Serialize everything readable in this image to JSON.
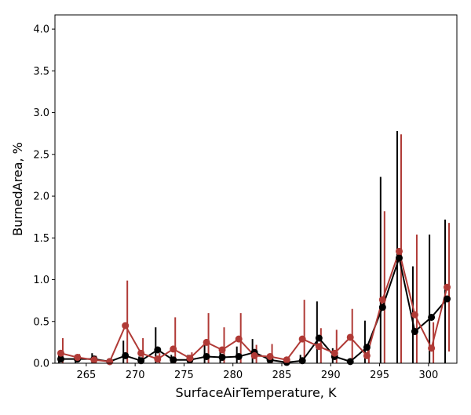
{
  "chart_data": {
    "type": "line",
    "title": "",
    "xlabel": "SurfaceAirTemperature,  K",
    "ylabel": "BurnedArea,  %",
    "xlim": [
      261.8,
      302.9
    ],
    "ylim": [
      0,
      4.17
    ],
    "xticks": [
      265,
      270,
      275,
      280,
      285,
      290,
      295,
      300
    ],
    "yticks": [
      0.0,
      0.5,
      1.0,
      1.5,
      2.0,
      2.5,
      3.0,
      3.5,
      4.0
    ],
    "xtick_labels": [
      "265",
      "270",
      "275",
      "280",
      "285",
      "290",
      "295",
      "300"
    ],
    "ytick_labels": [
      "0.0",
      "0.5",
      "1.0",
      "1.5",
      "2.0",
      "2.5",
      "3.0",
      "3.5",
      "4.0"
    ],
    "grid": false,
    "legend": "none",
    "series": [
      {
        "color": "#000000",
        "errorbar_offset": -0.2,
        "points": [
          {
            "x": 262.4,
            "y": 0.05,
            "err": 0.07
          },
          {
            "x": 264.1,
            "y": 0.05,
            "err": 0.05
          },
          {
            "x": 265.8,
            "y": 0.05,
            "err": 0.07
          },
          {
            "x": 267.4,
            "y": 0.02,
            "err": 0.02
          },
          {
            "x": 269.0,
            "y": 0.09,
            "err": 0.18
          },
          {
            "x": 270.6,
            "y": 0.03,
            "err": 0.05
          },
          {
            "x": 272.3,
            "y": 0.16,
            "err": 0.27
          },
          {
            "x": 273.9,
            "y": 0.04,
            "err": 0.06
          },
          {
            "x": 275.6,
            "y": 0.04,
            "err": 0.06
          },
          {
            "x": 277.3,
            "y": 0.08,
            "err": 0.17
          },
          {
            "x": 278.9,
            "y": 0.07,
            "err": 0.08
          },
          {
            "x": 280.6,
            "y": 0.08,
            "err": 0.12
          },
          {
            "x": 282.2,
            "y": 0.13,
            "err": 0.16
          },
          {
            "x": 283.8,
            "y": 0.04,
            "err": 0.05
          },
          {
            "x": 285.5,
            "y": 0.01,
            "err": 0.02
          },
          {
            "x": 287.1,
            "y": 0.03,
            "err": 0.07
          },
          {
            "x": 288.8,
            "y": 0.3,
            "err": 0.44
          },
          {
            "x": 290.4,
            "y": 0.08,
            "err": 0.1
          },
          {
            "x": 292.0,
            "y": 0.02,
            "err": 0.03
          },
          {
            "x": 293.7,
            "y": 0.19,
            "err": 0.32
          },
          {
            "x": 295.3,
            "y": 0.67,
            "err": 1.56
          },
          {
            "x": 297.0,
            "y": 1.26,
            "err": 1.52
          },
          {
            "x": 298.6,
            "y": 0.38,
            "err": 0.78
          },
          {
            "x": 300.3,
            "y": 0.55,
            "err": 0.99
          },
          {
            "x": 301.9,
            "y": 0.77,
            "err": 0.95
          }
        ]
      },
      {
        "color": "#b03a36",
        "errorbar_offset": 0.2,
        "points": [
          {
            "x": 262.4,
            "y": 0.12,
            "err": 0.18
          },
          {
            "x": 264.1,
            "y": 0.07,
            "err": 0.04
          },
          {
            "x": 265.8,
            "y": 0.04,
            "err": 0.05
          },
          {
            "x": 267.4,
            "y": 0.02,
            "err": 0.02
          },
          {
            "x": 269.0,
            "y": 0.45,
            "err": 0.54
          },
          {
            "x": 270.6,
            "y": 0.12,
            "err": 0.18
          },
          {
            "x": 272.3,
            "y": 0.05,
            "err": 0.07
          },
          {
            "x": 273.9,
            "y": 0.17,
            "err": 0.38
          },
          {
            "x": 275.6,
            "y": 0.06,
            "err": 0.07
          },
          {
            "x": 277.3,
            "y": 0.25,
            "err": 0.35
          },
          {
            "x": 278.9,
            "y": 0.16,
            "err": 0.27
          },
          {
            "x": 280.6,
            "y": 0.29,
            "err": 0.31
          },
          {
            "x": 282.2,
            "y": 0.09,
            "err": 0.13
          },
          {
            "x": 283.8,
            "y": 0.08,
            "err": 0.15
          },
          {
            "x": 285.5,
            "y": 0.04,
            "err": 0.04
          },
          {
            "x": 287.1,
            "y": 0.29,
            "err": 0.47
          },
          {
            "x": 288.8,
            "y": 0.2,
            "err": 0.22
          },
          {
            "x": 290.4,
            "y": 0.12,
            "err": 0.28
          },
          {
            "x": 292.0,
            "y": 0.31,
            "err": 0.34
          },
          {
            "x": 293.7,
            "y": 0.09,
            "err": 0.1
          },
          {
            "x": 295.3,
            "y": 0.76,
            "err": 1.06
          },
          {
            "x": 297.0,
            "y": 1.34,
            "err": 1.4
          },
          {
            "x": 298.6,
            "y": 0.58,
            "err": 0.96
          },
          {
            "x": 300.3,
            "y": 0.18,
            "err": 0.31
          },
          {
            "x": 301.9,
            "y": 0.91,
            "err": 0.77
          }
        ]
      }
    ]
  }
}
